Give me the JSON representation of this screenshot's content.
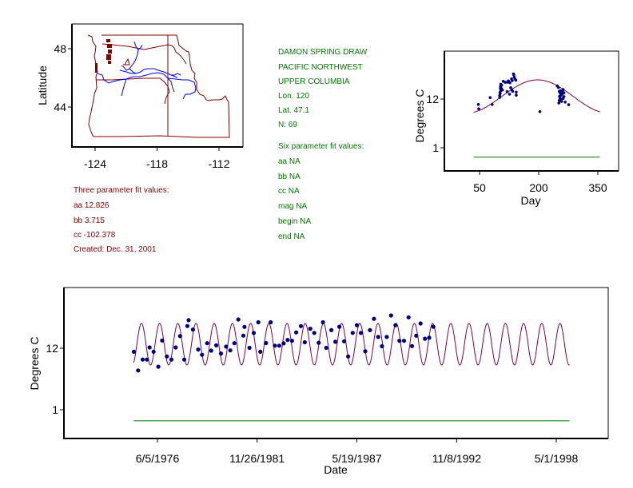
{
  "colors": {
    "boundary": "#800000",
    "river": "#0000ff",
    "points": "#00007f",
    "fit": "#7f003f",
    "baseline": "#007700",
    "info_text_green": "#007700",
    "info_text_red": "#800000"
  },
  "site_info": {
    "name": "DAMON SPRING DRAW",
    "region": "PACIFIC NORTHWEST",
    "basin": "UPPER COLUMBIA",
    "lon": "Lon. 120",
    "lat": "Lat. 47.1",
    "n": "N: 69"
  },
  "six_param": {
    "title": "Six parameter fit values:",
    "lines": [
      "aa NA",
      "bb NA",
      "cc NA",
      "mag NA",
      "begin NA",
      "end NA"
    ]
  },
  "three_param": {
    "title": "Three parameter fit values:",
    "lines": [
      "aa 12.826",
      "bb 3.715",
      "cc -102.378"
    ],
    "created": "Created:   Dec. 31, 2001"
  },
  "chart_data": [
    {
      "type": "map",
      "title": "",
      "xlabel": "",
      "ylabel": "Latitude",
      "xlim": [
        -126,
        -110
      ],
      "ylim": [
        41.5,
        49.5
      ],
      "xticks": [
        -124,
        -118,
        -112
      ],
      "xtick_labels": [
        "-124",
        "-118",
        "-112"
      ],
      "yticks": [
        44,
        48
      ],
      "ytick_labels": [
        "44",
        "48"
      ],
      "site_marker": {
        "lon": -120,
        "lat": 47.1,
        "shape": "triangle"
      },
      "layers": [
        "state boundaries",
        "rivers"
      ]
    },
    {
      "type": "scatter",
      "title": "",
      "xlabel": "Day",
      "ylabel": "Degrees C",
      "yscale": "log",
      "xlim": [
        10,
        380
      ],
      "ylim": [
        0.4,
        55
      ],
      "xticks": [
        50,
        200,
        350
      ],
      "xtick_labels": [
        "50",
        "200",
        "350"
      ],
      "yticks": [
        1,
        12
      ],
      "ytick_labels": [
        "1",
        "12"
      ],
      "points": [
        {
          "x": 47,
          "y": 9.1
        },
        {
          "x": 48,
          "y": 7.3
        },
        {
          "x": 77,
          "y": 12.9
        },
        {
          "x": 82,
          "y": 9.1
        },
        {
          "x": 101,
          "y": 14.4
        },
        {
          "x": 101,
          "y": 13.0
        },
        {
          "x": 102,
          "y": 15.7
        },
        {
          "x": 102,
          "y": 16.9
        },
        {
          "x": 103,
          "y": 20.4
        },
        {
          "x": 103,
          "y": 22.7
        },
        {
          "x": 104,
          "y": 25.6
        },
        {
          "x": 105,
          "y": 20.7
        },
        {
          "x": 104,
          "y": 18.3
        },
        {
          "x": 106,
          "y": 24.3
        },
        {
          "x": 108,
          "y": 19.0
        },
        {
          "x": 110,
          "y": 29.6
        },
        {
          "x": 115,
          "y": 28.1
        },
        {
          "x": 120,
          "y": 17.5
        },
        {
          "x": 121,
          "y": 28.4
        },
        {
          "x": 123,
          "y": 30.3
        },
        {
          "x": 124,
          "y": 29.6
        },
        {
          "x": 127,
          "y": 27.6
        },
        {
          "x": 126,
          "y": 15.4
        },
        {
          "x": 129,
          "y": 21.4
        },
        {
          "x": 131,
          "y": 33.5
        },
        {
          "x": 133,
          "y": 30.7
        },
        {
          "x": 132,
          "y": 19.0
        },
        {
          "x": 134,
          "y": 17.8
        },
        {
          "x": 136,
          "y": 43.2
        },
        {
          "x": 137,
          "y": 41.0
        },
        {
          "x": 138,
          "y": 36.5
        },
        {
          "x": 140,
          "y": 33.3
        },
        {
          "x": 142,
          "y": 31.4
        },
        {
          "x": 143,
          "y": 17.0
        },
        {
          "x": 143,
          "y": 14.6
        },
        {
          "x": 203,
          "y": 6.3
        },
        {
          "x": 247,
          "y": 23.4
        },
        {
          "x": 250,
          "y": 21.6
        },
        {
          "x": 252,
          "y": 17.7
        },
        {
          "x": 253,
          "y": 13.8
        },
        {
          "x": 254,
          "y": 12.4
        },
        {
          "x": 255,
          "y": 16.0
        },
        {
          "x": 256,
          "y": 18.3
        },
        {
          "x": 257,
          "y": 14.4
        },
        {
          "x": 258,
          "y": 12.0
        },
        {
          "x": 258,
          "y": 10.6
        },
        {
          "x": 260,
          "y": 15.7
        },
        {
          "x": 261,
          "y": 17.1
        },
        {
          "x": 262,
          "y": 19.5
        },
        {
          "x": 262,
          "y": 12.4
        },
        {
          "x": 264,
          "y": 16.5
        },
        {
          "x": 264,
          "y": 13.6
        },
        {
          "x": 252,
          "y": 11.1
        },
        {
          "x": 251,
          "y": 9.8
        },
        {
          "x": 256,
          "y": 11.0
        },
        {
          "x": 267,
          "y": 10.3
        },
        {
          "x": 276,
          "y": 9.0
        }
      ],
      "fit_curve": {
        "type": "sine",
        "period_days": 365,
        "peak_day": 197,
        "peak": 31.9,
        "trough": 5.8,
        "x_range": [
          35,
          355
        ]
      },
      "baseline": {
        "y": 0.62,
        "x_range": [
          35,
          355
        ]
      }
    },
    {
      "type": "scatter",
      "title": "",
      "xlabel": "Date",
      "ylabel": "Degrees C",
      "yscale": "log",
      "xlim": [
        1972.0,
        2001.3
      ],
      "ylim": [
        0.32,
        58
      ],
      "xticks": [
        1976.43,
        1981.9,
        1987.38,
        1992.86,
        1998.33
      ],
      "xtick_labels": [
        "6/5/1976",
        "11/26/1981",
        "5/19/1987",
        "11/8/1992",
        "5/1/1998"
      ],
      "yticks": [
        1,
        12
      ],
      "ytick_labels": [
        "1",
        "12"
      ],
      "points": [
        {
          "x": 1975.13,
          "y": 10.4
        },
        {
          "x": 1975.37,
          "y": 4.9
        },
        {
          "x": 1975.62,
          "y": 7.6
        },
        {
          "x": 1975.85,
          "y": 7.6
        },
        {
          "x": 1976.0,
          "y": 12.4
        },
        {
          "x": 1976.22,
          "y": 10.4
        },
        {
          "x": 1976.48,
          "y": 5.7
        },
        {
          "x": 1976.69,
          "y": 16.4
        },
        {
          "x": 1976.95,
          "y": 8.6
        },
        {
          "x": 1977.2,
          "y": 7.6
        },
        {
          "x": 1977.43,
          "y": 12.4
        },
        {
          "x": 1977.67,
          "y": 19.6
        },
        {
          "x": 1977.9,
          "y": 7.6
        },
        {
          "x": 1978.07,
          "y": 29.4
        },
        {
          "x": 1978.14,
          "y": 37.3
        },
        {
          "x": 1978.38,
          "y": 25.5
        },
        {
          "x": 1978.67,
          "y": 11.4
        },
        {
          "x": 1978.88,
          "y": 9.2
        },
        {
          "x": 1979.16,
          "y": 14.7
        },
        {
          "x": 1979.38,
          "y": 10.9
        },
        {
          "x": 1979.66,
          "y": 13.5
        },
        {
          "x": 1979.92,
          "y": 9.7
        },
        {
          "x": 1980.2,
          "y": 12.8
        },
        {
          "x": 1980.43,
          "y": 11.0
        },
        {
          "x": 1980.65,
          "y": 14.7
        },
        {
          "x": 1980.87,
          "y": 38.4
        },
        {
          "x": 1981.15,
          "y": 20.0
        },
        {
          "x": 1981.21,
          "y": 28.4
        },
        {
          "x": 1981.48,
          "y": 12.2
        },
        {
          "x": 1981.72,
          "y": 22.2
        },
        {
          "x": 1981.97,
          "y": 34.2
        },
        {
          "x": 1982.08,
          "y": 10.4
        },
        {
          "x": 1982.39,
          "y": 14.8
        },
        {
          "x": 1982.65,
          "y": 34.2
        },
        {
          "x": 1982.88,
          "y": 13.3
        },
        {
          "x": 1983.12,
          "y": 13.3
        },
        {
          "x": 1983.36,
          "y": 14.6
        },
        {
          "x": 1983.58,
          "y": 16.8
        },
        {
          "x": 1983.82,
          "y": 16.2
        },
        {
          "x": 1984.05,
          "y": 22.7
        },
        {
          "x": 1984.31,
          "y": 29.3
        },
        {
          "x": 1984.52,
          "y": 15.3
        },
        {
          "x": 1984.82,
          "y": 26.4
        },
        {
          "x": 1985.04,
          "y": 22.3
        },
        {
          "x": 1985.28,
          "y": 15.0
        },
        {
          "x": 1985.52,
          "y": 34.2
        },
        {
          "x": 1985.7,
          "y": 12.2
        },
        {
          "x": 1985.98,
          "y": 25.0
        },
        {
          "x": 1986.2,
          "y": 15.6
        },
        {
          "x": 1986.42,
          "y": 28.6
        },
        {
          "x": 1986.68,
          "y": 15.9
        },
        {
          "x": 1986.9,
          "y": 8.6
        },
        {
          "x": 1987.15,
          "y": 22.3
        },
        {
          "x": 1987.38,
          "y": 30.5
        },
        {
          "x": 1987.6,
          "y": 22.3
        },
        {
          "x": 1987.84,
          "y": 10.6
        },
        {
          "x": 1988.1,
          "y": 25.0
        },
        {
          "x": 1988.32,
          "y": 39.4
        },
        {
          "x": 1988.55,
          "y": 18.9
        },
        {
          "x": 1988.76,
          "y": 13.0
        },
        {
          "x": 1989.02,
          "y": 18.9
        },
        {
          "x": 1989.26,
          "y": 45.1
        },
        {
          "x": 1989.5,
          "y": 30.5
        },
        {
          "x": 1989.72,
          "y": 16.2
        },
        {
          "x": 1989.97,
          "y": 16.2
        },
        {
          "x": 1990.22,
          "y": 41.9
        },
        {
          "x": 1990.41,
          "y": 13.1
        },
        {
          "x": 1990.64,
          "y": 19.9
        },
        {
          "x": 1990.88,
          "y": 32.6
        },
        {
          "x": 1991.12,
          "y": 17.6
        },
        {
          "x": 1991.35,
          "y": 18.3
        },
        {
          "x": 1991.58,
          "y": 28.6
        }
      ],
      "fit_curve": {
        "type": "sine",
        "period_days": 365,
        "peak": 32.7,
        "trough": 6.1,
        "x_range": [
          1975.13,
          1999.06
        ]
      },
      "baseline": {
        "y": 0.64,
        "x_range": [
          1975.13,
          1999.06
        ]
      }
    }
  ]
}
